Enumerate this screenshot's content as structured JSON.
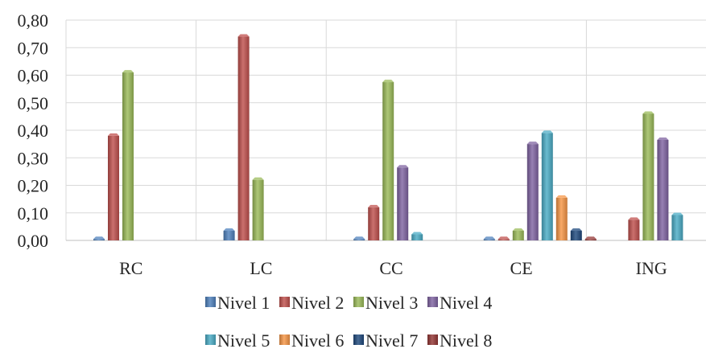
{
  "chart_data": {
    "type": "bar",
    "title": "",
    "xlabel": "",
    "ylabel": "",
    "categories": [
      "RC",
      "LC",
      "CC",
      "CE",
      "ING"
    ],
    "ylim": [
      0,
      0.8
    ],
    "yticks": [
      "0,00",
      "0,10",
      "0,20",
      "0,30",
      "0,40",
      "0,50",
      "0,60",
      "0,70",
      "0,80"
    ],
    "grid": true,
    "legend_position": "bottom",
    "series": [
      {
        "name": "Nivel 1",
        "color": "#4F81BD",
        "values": [
          0.005,
          0.035,
          0.005,
          0.005,
          0
        ]
      },
      {
        "name": "Nivel 2",
        "color": "#C0504D",
        "values": [
          0.38,
          0.74,
          0.12,
          0.005,
          0.075
        ]
      },
      {
        "name": "Nivel 3",
        "color": "#9BBB59",
        "values": [
          0.61,
          0.22,
          0.575,
          0.035,
          0.46
        ]
      },
      {
        "name": "Nivel 4",
        "color": "#8064A2",
        "values": [
          0,
          0,
          0.265,
          0.35,
          0.365
        ]
      },
      {
        "name": "Nivel 5",
        "color": "#4BACC6",
        "values": [
          0,
          0,
          0.022,
          0.39,
          0.092
        ]
      },
      {
        "name": "Nivel 6",
        "color": "#F79646",
        "values": [
          0,
          0,
          0,
          0.155,
          0
        ]
      },
      {
        "name": "Nivel 7",
        "color": "#1F497D",
        "values": [
          0,
          0,
          0,
          0.035,
          0
        ]
      },
      {
        "name": "Nivel 8",
        "color": "#943634",
        "values": [
          0,
          0,
          0,
          0.005,
          0
        ]
      }
    ]
  }
}
